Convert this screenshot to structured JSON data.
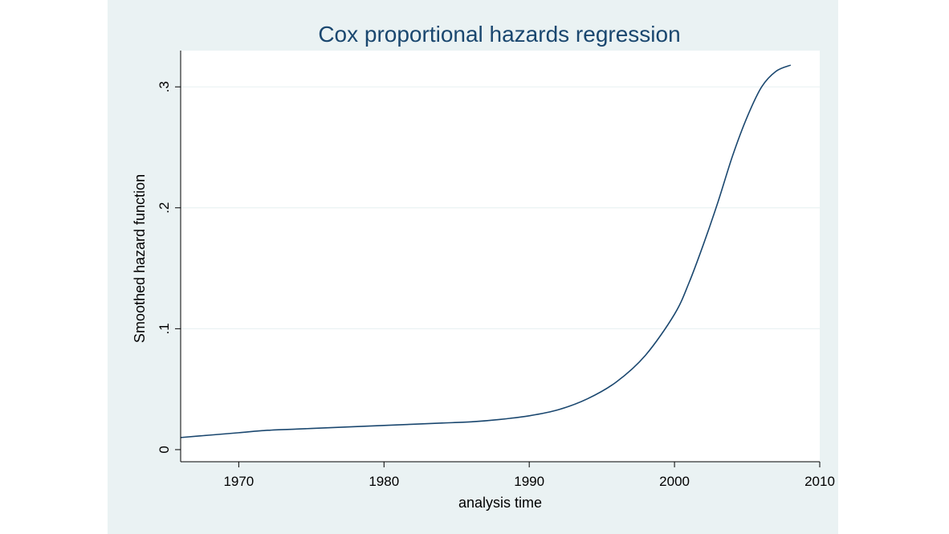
{
  "chart_data": {
    "type": "line",
    "title": "Cox proportional hazards regression",
    "xlabel": "analysis time",
    "ylabel": "Smoothed hazard function",
    "xlim": [
      1966,
      2010
    ],
    "ylim": [
      -0.01,
      0.33
    ],
    "x_ticks": [
      1970,
      1980,
      1990,
      2000,
      2010
    ],
    "x_tick_labels": [
      "1970",
      "1980",
      "1990",
      "2000",
      "2010"
    ],
    "y_ticks": [
      0,
      0.1,
      0.2,
      0.3
    ],
    "y_tick_labels": [
      "0",
      ".1",
      ".2",
      ".3"
    ],
    "grid": true,
    "legend": "none",
    "colors": {
      "figure_bg": "#eaf2f3",
      "plot_bg": "#ffffff",
      "line": "#1a476f",
      "title": "#1a476f",
      "grid": "#eaf2f3"
    },
    "series": [
      {
        "x": [
          1966,
          1968,
          1970,
          1972,
          1974,
          1976,
          1978,
          1980,
          1982,
          1984,
          1986,
          1988,
          1990,
          1992,
          1994,
          1996,
          1998,
          2000,
          2001,
          2002,
          2003,
          2004,
          2005,
          2006,
          2007,
          2008
        ],
        "y": [
          0.01,
          0.012,
          0.014,
          0.016,
          0.017,
          0.018,
          0.019,
          0.02,
          0.021,
          0.022,
          0.023,
          0.025,
          0.028,
          0.033,
          0.042,
          0.056,
          0.078,
          0.112,
          0.138,
          0.17,
          0.205,
          0.243,
          0.275,
          0.3,
          0.313,
          0.318
        ]
      }
    ]
  }
}
